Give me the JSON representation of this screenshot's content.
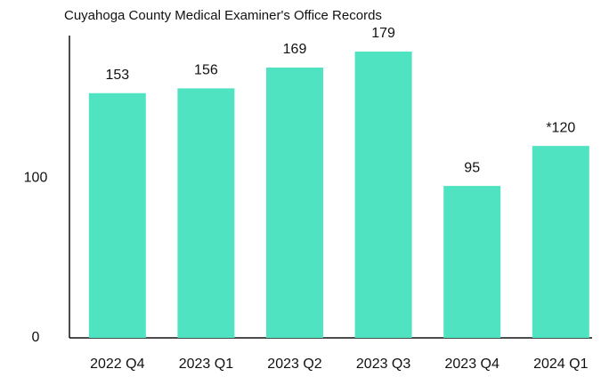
{
  "chart_data": {
    "type": "bar",
    "title": "Cuyahoga County Medical Examiner's Office Records",
    "categories": [
      "2022 Q4",
      "2023 Q1",
      "2023 Q2",
      "2023 Q3",
      "2023 Q4",
      "2024 Q1"
    ],
    "values": [
      153,
      156,
      169,
      179,
      95,
      120
    ],
    "value_labels": [
      "153",
      "156",
      "169",
      "179",
      "95",
      "*120"
    ],
    "color": "#50e3c2",
    "ylim": [
      0,
      189
    ],
    "yticks": [
      0,
      100
    ],
    "grid": false
  }
}
